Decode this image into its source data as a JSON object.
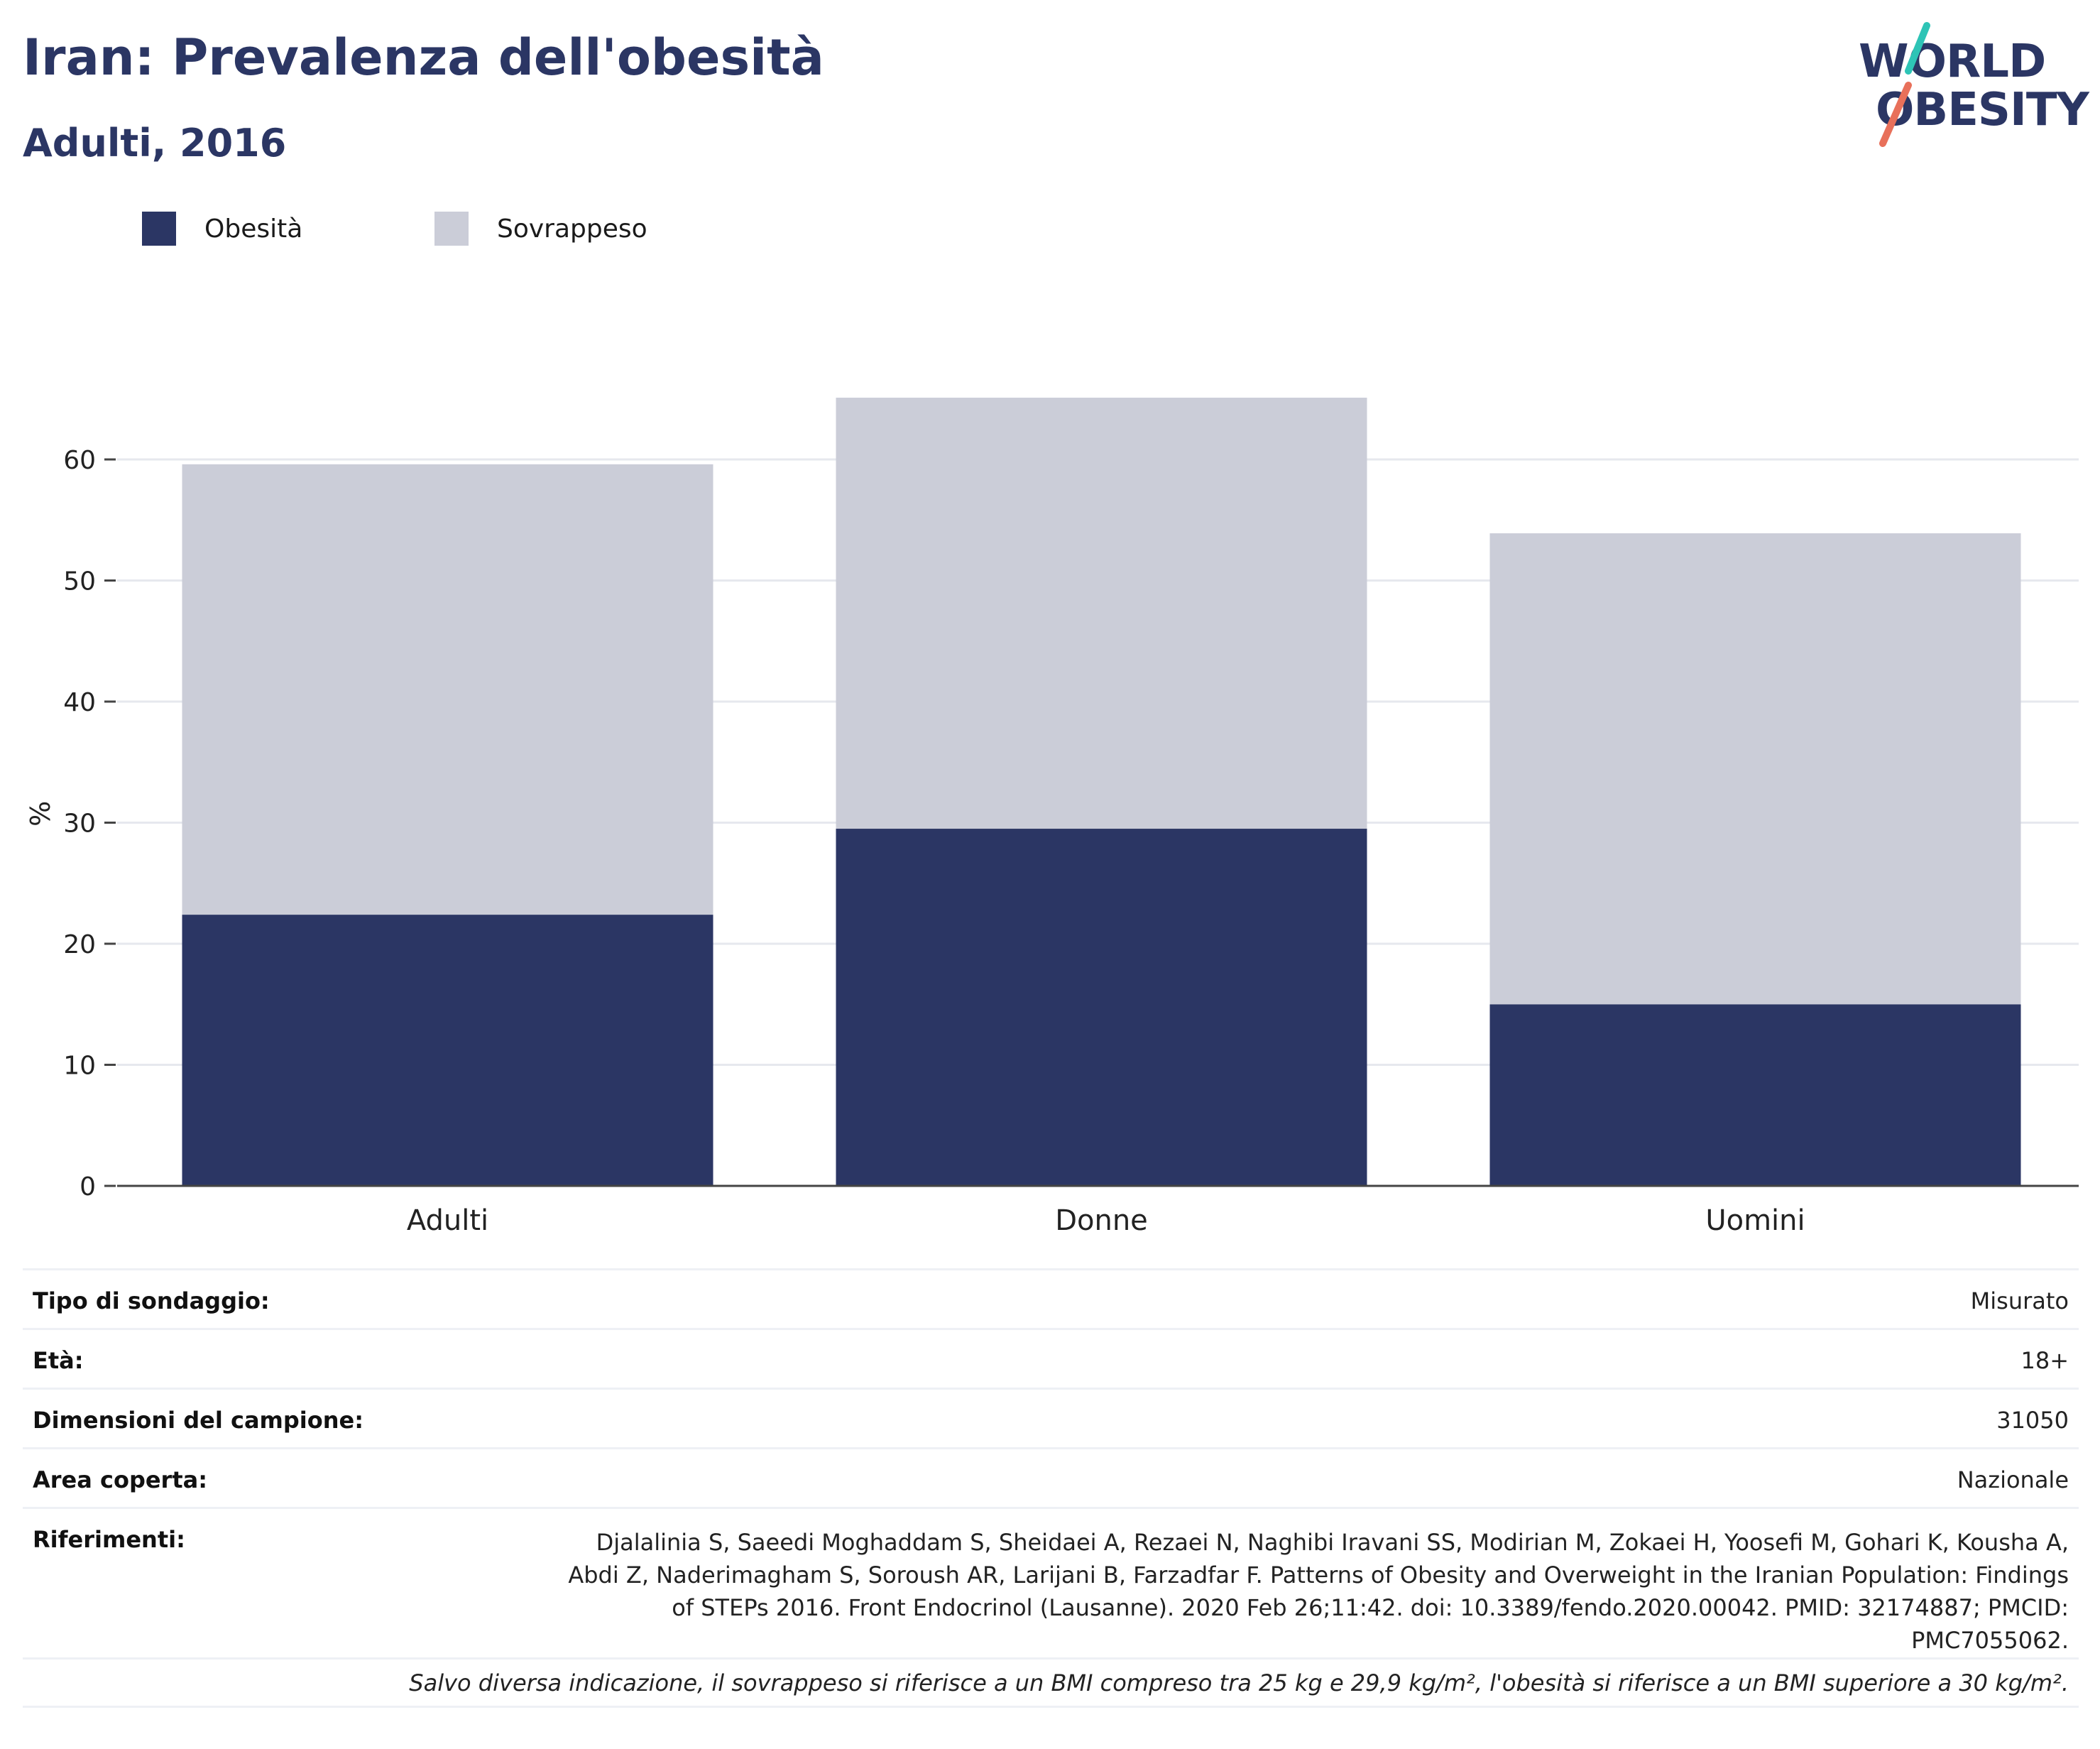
{
  "header": {
    "title": "Iran: Prevalenza dell'obesità",
    "subtitle": "Adulti, 2016"
  },
  "logo": {
    "line1": "WORLD",
    "line2": "OBESITY",
    "colors": {
      "text": "#2b3664",
      "teal": "#2ec4b6",
      "coral": "#e8705a"
    }
  },
  "legend": [
    {
      "label": "Obesità",
      "color": "#2b3664"
    },
    {
      "label": "Sovrappeso",
      "color": "#cbcdd8"
    }
  ],
  "chart_data": {
    "type": "bar",
    "stacked": true,
    "categories": [
      "Adulti",
      "Donne",
      "Uomini"
    ],
    "series": [
      {
        "name": "Obesità",
        "color": "#2b3664",
        "values": [
          22.4,
          29.5,
          15.0
        ]
      },
      {
        "name": "Sovrappeso",
        "color": "#cbcdd8",
        "values": [
          37.2,
          35.6,
          38.9
        ]
      }
    ],
    "ylabel": "%",
    "xlabel": "",
    "ylim": [
      0,
      65
    ],
    "yticks": [
      0,
      10,
      20,
      30,
      40,
      50,
      60
    ],
    "grid": true,
    "legend_position": "top-left"
  },
  "info": {
    "rows": [
      {
        "key": "Tipo di sondaggio:",
        "value": "Misurato"
      },
      {
        "key": "Età:",
        "value": "18+"
      },
      {
        "key": "Dimensioni del campione:",
        "value": "31050"
      },
      {
        "key": "Area coperta:",
        "value": "Nazionale"
      }
    ],
    "references_key": "Riferimenti:",
    "references_value": "Djalalinia S, Saeedi Moghaddam S, Sheidaei A, Rezaei N, Naghibi Iravani SS, Modirian M, Zokaei H, Yoosefi M, Gohari K, Kousha A, Abdi Z, Naderimagham S, Soroush AR, Larijani B, Farzadfar F. Patterns of Obesity and Overweight in the Iranian Population: Findings of STEPs 2016. Front Endocrinol (Lausanne). 2020 Feb 26;11:42. doi: 10.3389/fendo.2020.00042. PMID: 32174887; PMCID: PMC7055062.",
    "note": "Salvo diversa indicazione, il sovrappeso si riferisce a un BMI compreso tra 25 kg e 29,9 kg/m², l'obesità si riferisce a un BMI superiore a 30 kg/m²."
  }
}
